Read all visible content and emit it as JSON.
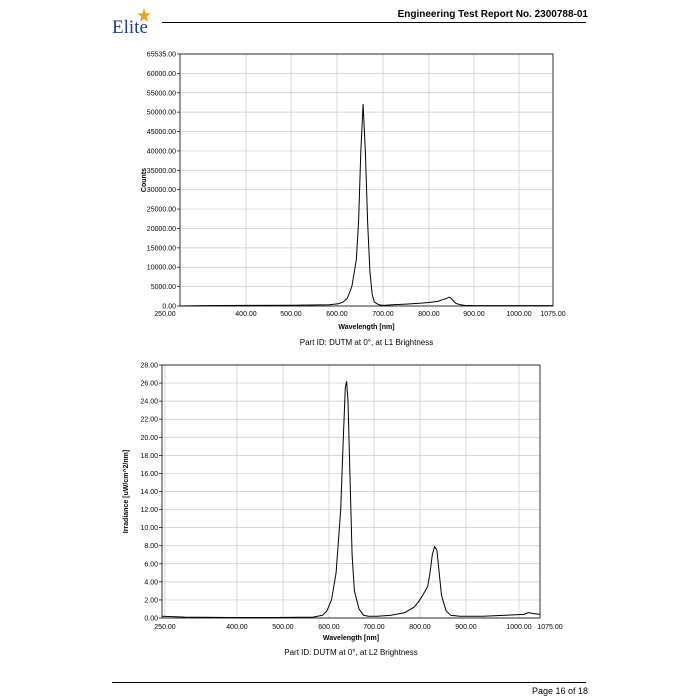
{
  "header": {
    "logo_text": "Elite",
    "title": "Engineering Test Report No. 2300788-01"
  },
  "footer": {
    "page": "Page 16 of 18"
  },
  "colors": {
    "logo_blue": "#1f3f8f",
    "logo_star": "#f2a11c",
    "line": "#000000",
    "grid": "#c8c8c8"
  },
  "chart_data": [
    {
      "type": "line",
      "title": "Part ID: DUTM at 0°, at L1 Brightness",
      "xlabel": "Wavelength [nm]",
      "ylabel": "Counts",
      "xlim": [
        250,
        1075
      ],
      "ylim": [
        0,
        65535
      ],
      "x_ticks": [
        "250.00",
        "400.00",
        "500.00",
        "600.00",
        "700.00",
        "800.00",
        "900.00",
        "1000.00",
        "1075.00"
      ],
      "y_ticks": [
        "0.00",
        "5000.00",
        "10000.00",
        "15000.00",
        "20000.00",
        "25000.00",
        "30000.00",
        "35000.00",
        "40000.00",
        "45000.00",
        "50000.00",
        "55000.00",
        "60000.00",
        "65535.00"
      ],
      "grid": true,
      "series": [
        {
          "x": [
            250,
            300,
            400,
            500,
            580,
            600,
            610,
            620,
            630,
            640,
            645,
            650,
            655,
            660,
            665,
            670,
            675,
            680,
            690,
            700,
            720,
            750,
            780,
            800,
            820,
            830,
            840,
            845,
            850,
            855,
            860,
            870,
            880,
            900,
            950,
            1000,
            1075
          ],
          "y": [
            0,
            100,
            150,
            200,
            300,
            600,
            1000,
            2000,
            5000,
            12000,
            22000,
            40000,
            52500,
            40000,
            22000,
            9000,
            3000,
            1000,
            300,
            150,
            300,
            500,
            700,
            900,
            1200,
            1600,
            2000,
            2300,
            2000,
            1300,
            700,
            300,
            150,
            100,
            100,
            100,
            100
          ]
        }
      ]
    },
    {
      "type": "line",
      "title": "Part ID: DUTM at 0°, at L2 Brightness",
      "xlabel": "Wavelength [nm]",
      "ylabel": "Irradiance [uW/cm^2/nm]",
      "xlim": [
        250,
        1075
      ],
      "ylim": [
        0,
        28
      ],
      "x_ticks": [
        "250.00",
        "400.00",
        "500.00",
        "600.00",
        "700.00",
        "800.00",
        "900.00",
        "1000.00",
        "1075.00"
      ],
      "y_ticks": [
        "0.00",
        "2.00",
        "4.00",
        "6.00",
        "8.00",
        "10.00",
        "12.00",
        "14.00",
        "16.00",
        "18.00",
        "20.00",
        "22.00",
        "24.00",
        "26.00",
        "28.00"
      ],
      "grid": true,
      "series": [
        {
          "x": [
            250,
            300,
            400,
            500,
            580,
            600,
            610,
            620,
            630,
            640,
            645,
            650,
            653,
            656,
            660,
            665,
            670,
            680,
            690,
            700,
            720,
            750,
            780,
            800,
            810,
            820,
            830,
            835,
            840,
            845,
            850,
            855,
            860,
            870,
            880,
            900,
            950,
            1000,
            1040,
            1050,
            1060,
            1075
          ],
          "y": [
            0.2,
            0.1,
            0.05,
            0.05,
            0.1,
            0.3,
            0.8,
            2.0,
            5.0,
            12.0,
            19.0,
            25.5,
            26.2,
            24.0,
            16.0,
            7.0,
            3.0,
            1.0,
            0.3,
            0.2,
            0.2,
            0.3,
            0.6,
            1.2,
            1.8,
            2.6,
            3.5,
            5.0,
            7.0,
            7.9,
            7.5,
            5.0,
            2.5,
            0.8,
            0.3,
            0.2,
            0.2,
            0.3,
            0.4,
            0.6,
            0.5,
            0.4
          ]
        }
      ]
    }
  ]
}
